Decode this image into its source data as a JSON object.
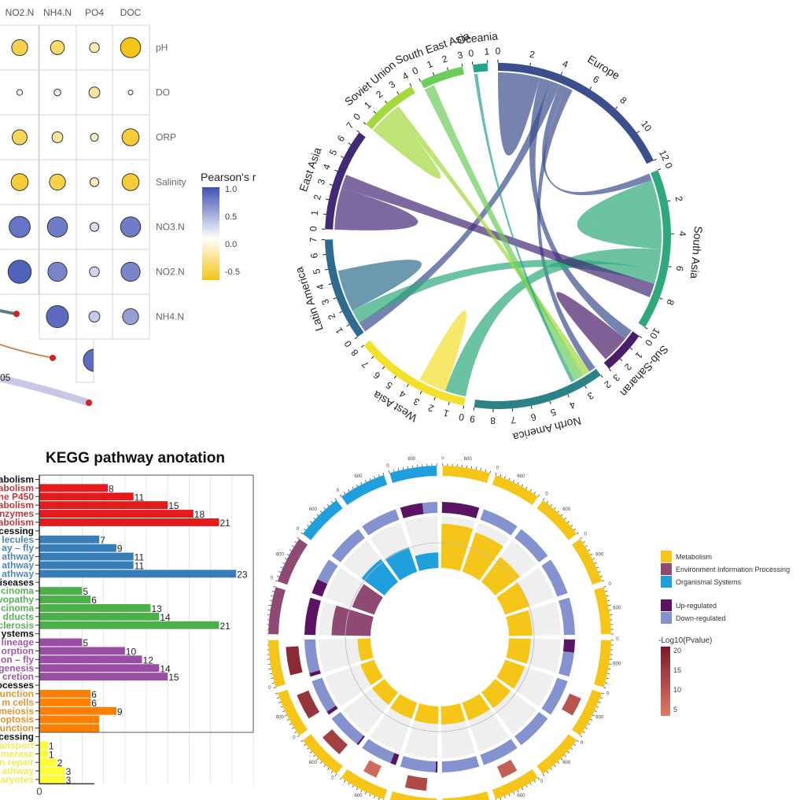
{
  "chart_data": [
    {
      "type": "heatmap",
      "subtype": "correlation-bubble-matrix",
      "title": "",
      "columns": [
        "NO2.N",
        "NH4.N",
        "PO4",
        "DOC"
      ],
      "rows": [
        "pH",
        "DO",
        "ORP",
        "Salinity",
        "NO3.N",
        "NO2.N",
        "NH4.N"
      ],
      "values": [
        [
          -0.55,
          -0.45,
          -0.25,
          -0.75
        ],
        [
          0.05,
          0.1,
          -0.3,
          0.0
        ],
        [
          -0.5,
          -0.3,
          -0.15,
          -0.6
        ],
        [
          -0.6,
          -0.55,
          -0.2,
          -0.6
        ],
        [
          0.8,
          0.75,
          0.2,
          0.75
        ],
        [
          0.9,
          0.7,
          0.25,
          0.7
        ],
        [
          null,
          0.85,
          0.3,
          0.55
        ]
      ],
      "partial_extra_cell": {
        "row_after": "NH4.N",
        "column": "PO4",
        "value": 0.85
      },
      "legend": {
        "title": "Pearson's r",
        "ticks": [
          "1.0",
          "0.5",
          "0.0",
          "-0.5"
        ],
        "range": [
          -0.7,
          1.0
        ],
        "colors": {
          "positive": "#3f51b5",
          "zero": "#ffffff",
          "negative": "#f5c518"
        }
      },
      "network_overlay": {
        "label": "05",
        "lines": [
          {
            "color": "#5b7f86",
            "style": "thick"
          },
          {
            "color": "#c98d52",
            "style": "thin"
          },
          {
            "color": "#c8c8e6",
            "style": "wide"
          }
        ],
        "endpoint_color": "#d42020"
      }
    },
    {
      "type": "chord",
      "title": "",
      "sectors": [
        {
          "name": "Europe",
          "max": 13,
          "ticks": [
            "0",
            "2",
            "4",
            "6",
            "8",
            "10",
            "12"
          ],
          "color": "#3b4f8c"
        },
        {
          "name": "South Asia",
          "max": 11,
          "ticks": [
            "0",
            "2",
            "4",
            "6",
            "8",
            "10"
          ],
          "color": "#2ea97a"
        },
        {
          "name": "Sub-Saharan",
          "max": 3,
          "ticks": [
            "0",
            "1",
            "2",
            "3"
          ],
          "color": "#4a1d6a"
        },
        {
          "name": "North America",
          "max": 9,
          "ticks": [
            "2",
            "3",
            "4",
            "5",
            "6",
            "7",
            "8",
            "9"
          ],
          "color": "#2b8287"
        },
        {
          "name": "West Asia",
          "max": 8,
          "ticks": [
            "0",
            "1",
            "2",
            "3",
            "4",
            "5",
            "6",
            "7",
            "8"
          ],
          "color": "#f2e02a"
        },
        {
          "name": "Latin America",
          "max": 7,
          "ticks": [
            "0",
            "1",
            "2",
            "3",
            "4",
            "5",
            "6",
            "7"
          ],
          "color": "#2d6c8e"
        },
        {
          "name": "East Asia",
          "max": 7,
          "ticks": [
            "0",
            "1",
            "2",
            "3",
            "4",
            "5",
            "6",
            "7"
          ],
          "color": "#432a77"
        },
        {
          "name": "Soviet Union",
          "max": 4,
          "ticks": [
            "0",
            "1",
            "2",
            "3",
            "4"
          ],
          "color": "#a3d93a"
        },
        {
          "name": "South East Asia",
          "max": 3,
          "ticks": [
            "0",
            "1",
            "2",
            "3"
          ],
          "color": "#6ccd5a"
        },
        {
          "name": "Oceania",
          "max": 1,
          "ticks": [
            "0",
            "1"
          ],
          "color": "#25a18e"
        }
      ],
      "links": [
        {
          "from": "Europe",
          "to": "Europe",
          "value": 3
        },
        {
          "from": "Europe",
          "to": "Sub-Saharan",
          "value": 1.5
        },
        {
          "from": "Europe",
          "to": "Latin America",
          "value": 1.5
        },
        {
          "from": "Europe",
          "to": "South Asia",
          "value": 1
        },
        {
          "from": "Europe",
          "to": "North America",
          "value": 1
        },
        {
          "from": "South Asia",
          "to": "South Asia",
          "value": 5
        },
        {
          "from": "South Asia",
          "to": "West Asia",
          "value": 3
        },
        {
          "from": "South Asia",
          "to": "Latin America",
          "value": 2
        },
        {
          "from": "Sub-Saharan",
          "to": "Sub-Saharan",
          "value": 2
        },
        {
          "from": "East Asia",
          "to": "East Asia",
          "value": 3
        },
        {
          "from": "East Asia",
          "to": "South Asia",
          "value": 2
        },
        {
          "from": "Latin America",
          "to": "Latin America",
          "value": 3
        },
        {
          "from": "Soviet Union",
          "to": "Soviet Union",
          "value": 2
        },
        {
          "from": "Soviet Union",
          "to": "North America",
          "value": 1
        },
        {
          "from": "South East Asia",
          "to": "North America",
          "value": 1.5
        },
        {
          "from": "Oceania",
          "to": "North America",
          "value": 0.5
        },
        {
          "from": "West Asia",
          "to": "West Asia",
          "value": 2
        }
      ]
    },
    {
      "type": "bar",
      "orientation": "horizontal",
      "title": "KEGG pathway anotation",
      "xlabel": "",
      "ylabel": "",
      "xlim": [
        0,
        25
      ],
      "x_tick_labels": [
        "0"
      ],
      "groups": [
        {
          "name": "abolism",
          "color": "#e41a1c",
          "label_color": "#c0393b",
          "items": [
            {
              "label": "abolism",
              "value": 8
            },
            {
              "label": "ne P450",
              "value": 11
            },
            {
              "label": "abolism",
              "value": 15
            },
            {
              "label": "nzymes",
              "value": 18
            },
            {
              "label": "abolism",
              "value": 21
            }
          ]
        },
        {
          "name": "cessing",
          "color": "#377eb8",
          "label_color": "#4f86b0",
          "items": [
            {
              "label": "lecules",
              "value": 7
            },
            {
              "label": "ay – fly",
              "value": 9
            },
            {
              "label": "athway",
              "value": 11
            },
            {
              "label": "athway",
              "value": 11
            },
            {
              "label": "athway",
              "value": 23
            }
          ]
        },
        {
          "name": "iseases",
          "color": "#4daf4a",
          "label_color": "#5ab05a",
          "items": [
            {
              "label": "cinoma",
              "value": 5
            },
            {
              "label": "vopathy",
              "value": 6
            },
            {
              "label": "cinoma",
              "value": 13
            },
            {
              "label": "dducts",
              "value": 14
            },
            {
              "label": "clerosis",
              "value": 21
            }
          ]
        },
        {
          "name": "ystems",
          "color": "#984ea3",
          "label_color": "#9a5aa5",
          "items": [
            {
              "label": "lineage",
              "value": 5
            },
            {
              "label": "orption",
              "value": 10
            },
            {
              "label": "on – fly",
              "value": 12
            },
            {
              "label": "genesis",
              "value": 14
            },
            {
              "label": "cretion",
              "value": 15
            }
          ]
        },
        {
          "name": "ocesses",
          "color": "#ff7f00",
          "label_color": "#e0952f",
          "items": [
            {
              "label": "unction",
              "value": 6
            },
            {
              "label": "m cells",
              "value": 6
            },
            {
              "label": "meiosis",
              "value": 9
            },
            {
              "label": "optosis",
              "value": 7,
              "unlabeled": true
            },
            {
              "label": "unction",
              "value": 7,
              "unlabeled": true
            }
          ]
        },
        {
          "name": "cessing",
          "color": "#ffff33",
          "label_color": "#f2ec54",
          "items": [
            {
              "label": "ansport",
              "value": 1
            },
            {
              "label": "merase",
              "value": 1
            },
            {
              "label": "n repair",
              "value": 2
            },
            {
              "label": "athway",
              "value": 3
            },
            {
              "label": "aryotes",
              "value": 3
            }
          ]
        }
      ]
    },
    {
      "type": "circos",
      "subtype": "GO/KEGG enrichment circle",
      "title": "",
      "outer_ring_tick_labels": [
        "0",
        "600"
      ],
      "legend": {
        "categories": [
          {
            "label": "Metabolism",
            "color": "#f5c518"
          },
          {
            "label": "Environment Information Processing",
            "color": "#8e4a72"
          },
          {
            "label": "Organismal Systems",
            "color": "#1fa0dc"
          }
        ],
        "regulation": [
          {
            "label": "Up-regulated",
            "color": "#5a1463"
          },
          {
            "label": "Down-regulated",
            "color": "#8493cf"
          }
        ],
        "pvalue": {
          "title": "-Log10(Pvalue)",
          "ticks": [
            "20",
            "15",
            "10",
            "5"
          ],
          "range": [
            3,
            21
          ],
          "colors": [
            "#7a1a2a",
            "#e07a66"
          ]
        }
      },
      "terms": [
        {
          "category": "Metabolism",
          "rich": 0.85,
          "up_frac": 1.0,
          "neglog_p": 0
        },
        {
          "category": "Metabolism",
          "rich": 0.8,
          "up_frac": 0.0,
          "neglog_p": 0
        },
        {
          "category": "Metabolism",
          "rich": 0.6,
          "up_frac": 0.0,
          "neglog_p": 0
        },
        {
          "category": "Metabolism",
          "rich": 0.5,
          "up_frac": 0.0,
          "neglog_p": 0
        },
        {
          "category": "Metabolism",
          "rich": 0.45,
          "up_frac": 0.0,
          "neglog_p": 0
        },
        {
          "category": "Metabolism",
          "rich": 0.42,
          "up_frac": 0.35,
          "neglog_p": 0
        },
        {
          "category": "Metabolism",
          "rich": 0.4,
          "up_frac": 0.0,
          "neglog_p": 10
        },
        {
          "category": "Metabolism",
          "rich": 0.38,
          "up_frac": 0.0,
          "neglog_p": 0
        },
        {
          "category": "Metabolism",
          "rich": 0.36,
          "up_frac": 0.0,
          "neglog_p": 8
        },
        {
          "category": "Metabolism",
          "rich": 0.35,
          "up_frac": 0.0,
          "neglog_p": 0
        },
        {
          "category": "Metabolism",
          "rich": 0.34,
          "up_frac": 0.05,
          "neglog_p": 12
        },
        {
          "category": "Metabolism",
          "rich": 0.33,
          "up_frac": 0.15,
          "neglog_p": 6
        },
        {
          "category": "Metabolism",
          "rich": 0.3,
          "up_frac": 0.05,
          "neglog_p": 14
        },
        {
          "category": "Metabolism",
          "rich": 0.28,
          "up_frac": 0.1,
          "neglog_p": 16
        },
        {
          "category": "Metabolism",
          "rich": 0.25,
          "up_frac": 0.1,
          "neglog_p": 18
        },
        {
          "category": "Environment Information Processing",
          "rich": 0.75,
          "up_frac": 1.0,
          "neglog_p": 0
        },
        {
          "category": "Environment Information Processing",
          "rich": 0.45,
          "up_frac": 0.4,
          "neglog_p": 0
        },
        {
          "category": "Organismal Systems",
          "rich": 0.55,
          "up_frac": 0.0,
          "neglog_p": 0
        },
        {
          "category": "Organismal Systems",
          "rich": 0.5,
          "up_frac": 0.0,
          "neglog_p": 0
        },
        {
          "category": "Organismal Systems",
          "rich": 0.3,
          "up_frac": 0.6,
          "neglog_p": 0
        }
      ]
    }
  ]
}
